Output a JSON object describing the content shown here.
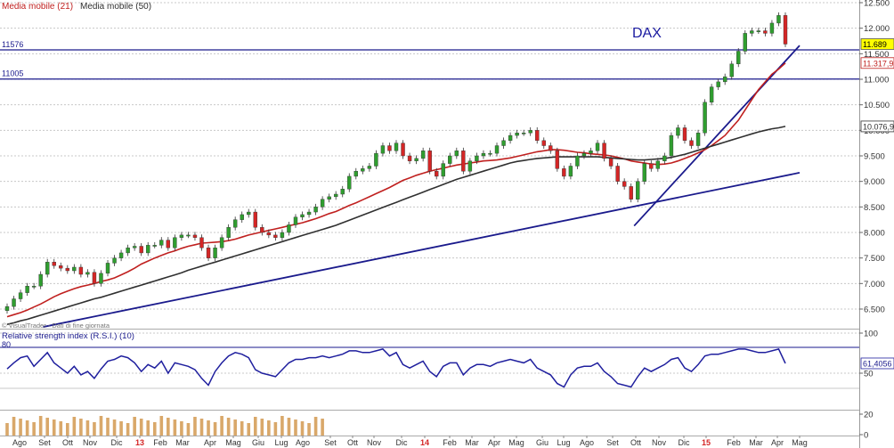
{
  "colors": {
    "up": "#2f9e2f",
    "down": "#d42626",
    "ma21": "#c0201f",
    "ma50": "#303030",
    "trend": "#1a1a8c",
    "rsi": "#1f1f9e",
    "volume": "#d9a86a",
    "grid": "#c8c8c8"
  },
  "legend": {
    "ma21": "Media mobile (21)",
    "ma50": "Media mobile (50)"
  },
  "symbol": "DAX",
  "copyright": "© VisualTrader - Dati di fine giornata",
  "levels": [
    {
      "label": "11576",
      "value": 11576
    },
    {
      "label": "11005",
      "value": 11005
    }
  ],
  "price_badges": [
    {
      "label": "11.689",
      "value": 11689,
      "style": "highlight"
    },
    {
      "label": "11.317,9",
      "value": 11317.9,
      "style": "ma21"
    },
    {
      "label": "10.076,9",
      "value": 10076.9,
      "style": "ma50"
    }
  ],
  "rsi": {
    "title": "Relative strength index (R.S.I.) (10)",
    "level_80": "80",
    "level_50": "50",
    "last_label": "61,4056",
    "axis_ticks": [
      "100",
      "50"
    ]
  },
  "volume_axis_ticks": [
    "20",
    "0"
  ],
  "months": [
    "Ago",
    "Set",
    "Ott",
    "Nov",
    "Dic",
    "13",
    "Feb",
    "Mar",
    "Apr",
    "Mag",
    "Giu",
    "Lug",
    "Ago",
    "Set",
    "Ott",
    "Nov",
    "Dic",
    "14",
    "Feb",
    "Mar",
    "Apr",
    "Mag",
    "Giu",
    "Lug",
    "Ago",
    "Set",
    "Ott",
    "Nov",
    "Dic",
    "15",
    "Feb",
    "Mar",
    "Apr",
    "Mag"
  ],
  "chart_data": {
    "type": "candlestick",
    "title": "DAX",
    "frequency": "weekly",
    "x_start": "2012-08",
    "x_end": "2015-05",
    "ylim": [
      6300,
      12500
    ],
    "y_ticks": [
      "12.500",
      "12.000",
      "11.500",
      "11.000",
      "10.500",
      "10.000",
      "9.500",
      "9.000",
      "8.500",
      "8.000",
      "7.500",
      "7.000",
      "6.500"
    ],
    "horizontal_levels": [
      11576,
      11005
    ],
    "series": [
      {
        "name": "DAX",
        "close": [
          6550,
          6700,
          6820,
          6950,
          6950,
          7180,
          7420,
          7350,
          7300,
          7250,
          7320,
          7180,
          7220,
          7000,
          7200,
          7400,
          7500,
          7600,
          7700,
          7730,
          7600,
          7750,
          7750,
          7850,
          7700,
          7900,
          7950,
          7950,
          7900,
          7700,
          7500,
          7700,
          7900,
          8100,
          8250,
          8350,
          8400,
          8100,
          8000,
          7950,
          7900,
          8000,
          8150,
          8300,
          8350,
          8400,
          8500,
          8650,
          8700,
          8750,
          8850,
          9100,
          9200,
          9250,
          9300,
          9550,
          9700,
          9600,
          9750,
          9500,
          9400,
          9450,
          9600,
          9200,
          9100,
          9350,
          9500,
          9600,
          9200,
          9400,
          9500,
          9550,
          9550,
          9700,
          9800,
          9900,
          9950,
          9950,
          10000,
          9800,
          9700,
          9600,
          9250,
          9100,
          9300,
          9500,
          9550,
          9600,
          9750,
          9450,
          9300,
          9000,
          8900,
          8650,
          9000,
          9350,
          9250,
          9400,
          9500,
          9900,
          10050,
          9800,
          9700,
          9950,
          10550,
          10850,
          10950,
          11050,
          11300,
          11550,
          11900,
          11950,
          11950,
          11900,
          12100,
          12250,
          11689
        ]
      },
      {
        "name": "Media mobile (21)",
        "values": [
          6350,
          6390,
          6430,
          6480,
          6540,
          6600,
          6670,
          6740,
          6800,
          6850,
          6900,
          6940,
          6970,
          7000,
          7040,
          7070,
          7110,
          7170,
          7230,
          7300,
          7380,
          7440,
          7500,
          7550,
          7600,
          7640,
          7690,
          7730,
          7760,
          7790,
          7800,
          7810,
          7820,
          7840,
          7870,
          7910,
          7950,
          7980,
          8010,
          8040,
          8070,
          8100,
          8130,
          8160,
          8190,
          8230,
          8270,
          8320,
          8370,
          8410,
          8470,
          8530,
          8580,
          8640,
          8700,
          8760,
          8820,
          8880,
          8950,
          9020,
          9070,
          9120,
          9160,
          9200,
          9230,
          9260,
          9290,
          9320,
          9340,
          9360,
          9380,
          9400,
          9410,
          9420,
          9440,
          9460,
          9490,
          9520,
          9550,
          9580,
          9600,
          9620,
          9620,
          9610,
          9590,
          9570,
          9560,
          9540,
          9530,
          9520,
          9500,
          9470,
          9440,
          9400,
          9380,
          9360,
          9340,
          9330,
          9340,
          9360,
          9400,
          9450,
          9500,
          9560,
          9620,
          9700,
          9800,
          9900,
          10050,
          10200,
          10400,
          10600,
          10800,
          10950,
          11100,
          11200,
          11317.9
        ]
      },
      {
        "name": "Media mobile (50)",
        "values": [
          6200,
          6230,
          6270,
          6300,
          6340,
          6380,
          6420,
          6460,
          6500,
          6540,
          6580,
          6620,
          6660,
          6700,
          6730,
          6770,
          6810,
          6850,
          6890,
          6930,
          6970,
          7010,
          7050,
          7090,
          7130,
          7170,
          7210,
          7260,
          7300,
          7340,
          7380,
          7420,
          7460,
          7500,
          7540,
          7580,
          7620,
          7660,
          7700,
          7740,
          7780,
          7820,
          7860,
          7900,
          7940,
          7980,
          8020,
          8060,
          8100,
          8140,
          8190,
          8240,
          8290,
          8340,
          8390,
          8440,
          8490,
          8540,
          8590,
          8640,
          8690,
          8740,
          8790,
          8840,
          8890,
          8940,
          8990,
          9040,
          9080,
          9120,
          9160,
          9200,
          9240,
          9280,
          9320,
          9360,
          9390,
          9410,
          9430,
          9450,
          9460,
          9470,
          9480,
          9480,
          9480,
          9480,
          9480,
          9480,
          9480,
          9470,
          9460,
          9450,
          9440,
          9430,
          9420,
          9420,
          9430,
          9440,
          9450,
          9470,
          9500,
          9530,
          9570,
          9610,
          9650,
          9690,
          9730,
          9770,
          9810,
          9850,
          9890,
          9930,
          9970,
          10000,
          10030,
          10050,
          10076.9
        ]
      },
      {
        "name": "Relative strength index (R.S.I.) (10)",
        "values": [
          55,
          62,
          68,
          70,
          58,
          66,
          74,
          62,
          56,
          50,
          58,
          48,
          52,
          44,
          55,
          64,
          66,
          70,
          68,
          62,
          52,
          60,
          56,
          64,
          50,
          62,
          60,
          58,
          54,
          44,
          36,
          52,
          62,
          70,
          74,
          72,
          68,
          54,
          50,
          48,
          46,
          54,
          62,
          66,
          66,
          68,
          68,
          70,
          68,
          70,
          72,
          76,
          76,
          74,
          74,
          76,
          78,
          70,
          74,
          60,
          56,
          60,
          64,
          52,
          46,
          58,
          62,
          62,
          48,
          56,
          60,
          60,
          58,
          62,
          64,
          66,
          64,
          62,
          66,
          56,
          52,
          48,
          38,
          34,
          48,
          56,
          58,
          58,
          62,
          52,
          46,
          38,
          36,
          34,
          46,
          56,
          52,
          56,
          60,
          66,
          68,
          56,
          52,
          60,
          70,
          72,
          72,
          74,
          76,
          78,
          78,
          76,
          74,
          74,
          76,
          78,
          61.4056
        ]
      }
    ],
    "trendlines": [
      {
        "from": {
          "x": "2012-09",
          "y": 6150
        },
        "to": {
          "x": "2015-05",
          "y": 9170
        }
      },
      {
        "from": {
          "x": "2014-10",
          "y": 8130
        },
        "to": {
          "x": "2015-05",
          "y": 11660
        }
      }
    ]
  }
}
